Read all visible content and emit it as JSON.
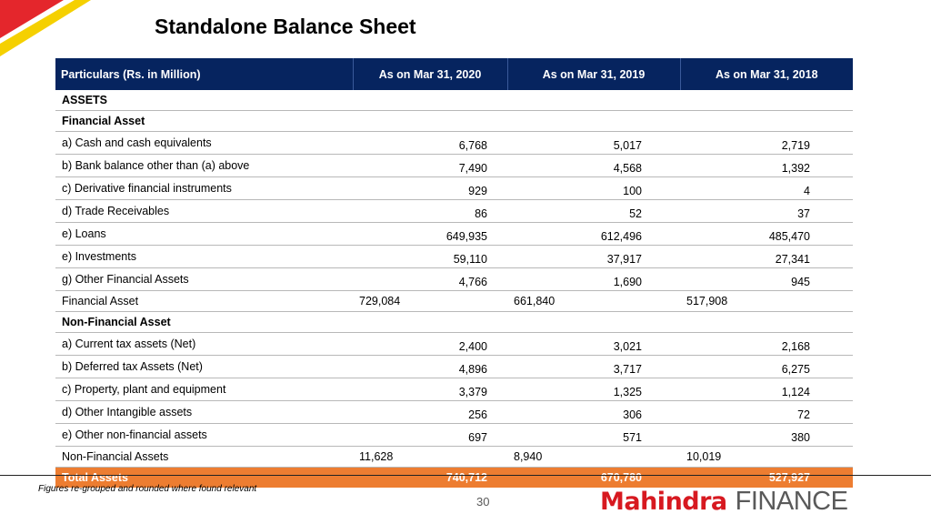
{
  "title": "Standalone Balance Sheet",
  "colors": {
    "header_bg": "#06245f",
    "subtotal_bg": "#2e75b6",
    "total_bg": "#ed7d31",
    "brand_red": "#d71920"
  },
  "table": {
    "headers": [
      "Particulars (Rs. in Million)",
      "As on Mar 31, 2020",
      "As on Mar 31, 2019",
      "As on Mar 31, 2018"
    ],
    "rows": [
      {
        "kind": "heading",
        "label": "ASSETS",
        "values": [
          "",
          "",
          ""
        ]
      },
      {
        "kind": "heading",
        "label": "Financial Asset",
        "values": [
          "",
          "",
          ""
        ]
      },
      {
        "kind": "item",
        "label": "a) Cash and cash equivalents",
        "values": [
          "6,768",
          "5,017",
          "2,719"
        ]
      },
      {
        "kind": "item",
        "label": "b) Bank balance other than (a) above",
        "values": [
          "7,490",
          "4,568",
          "1,392"
        ]
      },
      {
        "kind": "item",
        "label": "c) Derivative financial instruments",
        "values": [
          "929",
          "100",
          "4"
        ]
      },
      {
        "kind": "item",
        "label": "d) Trade Receivables",
        "values": [
          "86",
          "52",
          "37"
        ]
      },
      {
        "kind": "item",
        "label": "e) Loans",
        "values": [
          "649,935",
          "612,496",
          "485,470"
        ]
      },
      {
        "kind": "item",
        "label": "e) Investments",
        "values": [
          "59,110",
          "37,917",
          "27,341"
        ]
      },
      {
        "kind": "item",
        "label": "g)  Other Financial Assets",
        "values": [
          "4,766",
          "1,690",
          "945"
        ]
      },
      {
        "kind": "subtotal",
        "label": "Financial Asset",
        "values": [
          "729,084",
          "661,840",
          "517,908"
        ]
      },
      {
        "kind": "heading",
        "label": "Non-Financial Asset",
        "values": [
          "",
          "",
          ""
        ]
      },
      {
        "kind": "item",
        "label": "a) Current tax assets (Net)",
        "values": [
          "2,400",
          "3,021",
          "2,168"
        ]
      },
      {
        "kind": "item",
        "label": "b) Deferred tax Assets (Net)",
        "values": [
          "4,896",
          "3,717",
          "6,275"
        ]
      },
      {
        "kind": "item",
        "label": "c) Property, plant and equipment",
        "values": [
          "3,379",
          "1,325",
          "1,124"
        ]
      },
      {
        "kind": "item",
        "label": "d) Other Intangible assets",
        "values": [
          "256",
          "306",
          "72"
        ]
      },
      {
        "kind": "item",
        "label": "e) Other non-financial assets",
        "values": [
          "697",
          "571",
          "380"
        ]
      },
      {
        "kind": "subtotal",
        "label": "Non-Financial Assets",
        "values": [
          "11,628",
          "8,940",
          "10,019"
        ]
      },
      {
        "kind": "total",
        "label": "Total Assets",
        "values": [
          "740,712",
          "670,780",
          "527,927"
        ]
      }
    ]
  },
  "footer": {
    "note": "Figures re-grouped and rounded where found relevant",
    "page_number": "30",
    "logo_word1": "Mahindra",
    "logo_word2": "FINANCE"
  }
}
